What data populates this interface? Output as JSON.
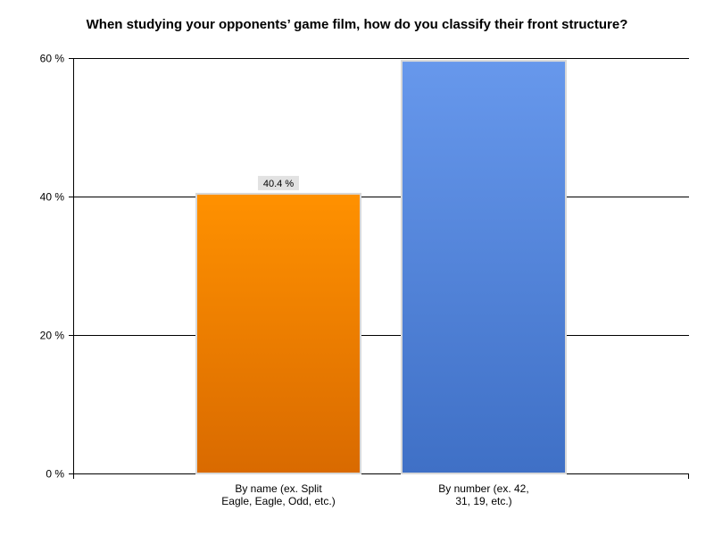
{
  "chart_data": {
    "type": "bar",
    "title": "When studying your opponents’ game film, how do you classify their front structure?",
    "xlabel": "",
    "ylabel": "",
    "ylim": [
      0,
      60
    ],
    "yticks": [
      0,
      20,
      40,
      60
    ],
    "ytick_labels": [
      "0 %",
      "20 %",
      "40 %",
      "60 %"
    ],
    "grid": true,
    "categories": [
      [
        "By name (ex. Split",
        "Eagle, Eagle, Odd, etc.)"
      ],
      [
        "By number (ex. 42,",
        "31, 19, etc.)"
      ]
    ],
    "values": [
      40.4,
      59.6
    ],
    "data_labels": [
      "40.4 %",
      ""
    ],
    "colors": [
      "#f08a00",
      "#5b8ce0"
    ]
  }
}
